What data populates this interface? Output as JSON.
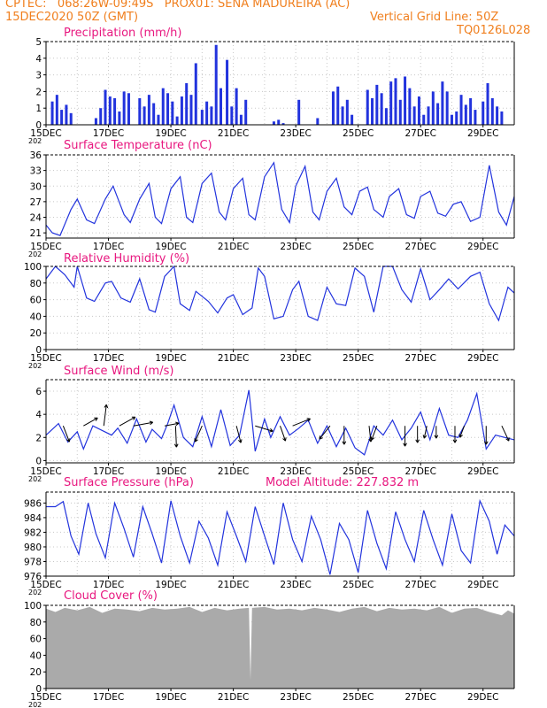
{
  "header": {
    "line1_left": "CPTEC:   068:26W-09:49S   PROX01: SENA MADUREIRA (AC)",
    "line2_left": "15DEC2020 50Z (GMT)",
    "line2_right": "Vertical Grid Line: 50Z",
    "line3_right": "TQ0126L028"
  },
  "colors": {
    "header": "#f07f1e",
    "title": "#e8177f",
    "series": "#2233dd",
    "cloud": "#aaaaaa",
    "grid": "#c8c8c8"
  },
  "chart_data": [
    {
      "type": "bar",
      "title": "Precipitation (mm/h)",
      "x_labels": [
        "15DEC",
        "17DEC",
        "19DEC",
        "21DEC",
        "23DEC",
        "25DEC",
        "27DEC",
        "29DEC"
      ],
      "year_fragment": "202",
      "ylim": [
        0,
        5
      ],
      "yticks": [
        0,
        1,
        2,
        3,
        4,
        5
      ],
      "x_range_days": [
        0,
        15
      ],
      "times": [
        0.2,
        0.35,
        0.5,
        0.65,
        0.8,
        1.6,
        1.75,
        1.9,
        2.05,
        2.2,
        2.35,
        2.5,
        2.65,
        3.0,
        3.15,
        3.3,
        3.45,
        3.6,
        3.75,
        3.9,
        4.05,
        4.2,
        4.35,
        4.5,
        4.65,
        4.8,
        5.0,
        5.15,
        5.3,
        5.45,
        5.6,
        5.8,
        5.95,
        6.1,
        6.25,
        6.4,
        7.3,
        7.45,
        7.6,
        8.1,
        8.7,
        9.2,
        9.35,
        9.5,
        9.65,
        9.8,
        10.3,
        10.45,
        10.6,
        10.75,
        10.9,
        11.05,
        11.2,
        11.35,
        11.5,
        11.65,
        11.8,
        11.95,
        12.1,
        12.25,
        12.4,
        12.55,
        12.7,
        12.85,
        13.0,
        13.15,
        13.3,
        13.45,
        13.6,
        13.75,
        14.0,
        14.15,
        14.3,
        14.45,
        14.6
      ],
      "values": [
        1.4,
        1.8,
        0.9,
        1.2,
        0.7,
        0.4,
        1.0,
        2.1,
        1.7,
        1.6,
        0.8,
        2.0,
        1.9,
        1.6,
        1.1,
        1.8,
        1.3,
        0.6,
        2.2,
        1.9,
        1.4,
        0.5,
        1.7,
        2.5,
        1.8,
        3.7,
        0.9,
        1.4,
        1.1,
        4.8,
        2.2,
        3.9,
        1.1,
        2.2,
        0.6,
        1.5,
        0.2,
        0.3,
        0.1,
        1.5,
        0.4,
        2.0,
        2.3,
        1.1,
        1.5,
        0.6,
        2.1,
        1.6,
        2.4,
        1.9,
        1.0,
        2.6,
        2.8,
        1.5,
        2.9,
        2.2,
        1.1,
        1.7,
        0.6,
        1.1,
        2.0,
        1.3,
        2.6,
        2.0,
        0.6,
        0.8,
        1.8,
        1.2,
        1.6,
        0.9,
        1.4,
        2.5,
        1.6,
        1.1,
        0.8
      ]
    },
    {
      "type": "line",
      "title": "Surface Temperature (nC)",
      "x_labels": [
        "15DEC",
        "17DEC",
        "19DEC",
        "21DEC",
        "23DEC",
        "25DEC",
        "27DEC",
        "29DEC"
      ],
      "year_fragment": "202",
      "ylim": [
        20,
        36
      ],
      "yticks": [
        21,
        24,
        27,
        30,
        33,
        36
      ],
      "x": [
        0,
        0.2,
        0.45,
        0.8,
        1.0,
        1.3,
        1.55,
        1.9,
        2.15,
        2.5,
        2.7,
        3.0,
        3.3,
        3.5,
        3.7,
        4.0,
        4.3,
        4.5,
        4.7,
        5.0,
        5.3,
        5.55,
        5.75,
        6.0,
        6.3,
        6.5,
        6.7,
        7.0,
        7.3,
        7.55,
        7.8,
        8.0,
        8.3,
        8.55,
        8.75,
        9.0,
        9.3,
        9.55,
        9.8,
        10.05,
        10.3,
        10.5,
        10.8,
        11.0,
        11.3,
        11.55,
        11.8,
        12.0,
        12.3,
        12.55,
        12.8,
        13.05,
        13.3,
        13.6,
        13.9,
        14.2,
        14.5,
        14.75,
        15.0
      ],
      "values": [
        22.5,
        21.0,
        20.5,
        25.5,
        27.5,
        23.5,
        22.8,
        27.5,
        30.0,
        24.5,
        23.0,
        27.5,
        30.5,
        24.0,
        22.8,
        29.5,
        31.8,
        24.0,
        23.0,
        30.5,
        32.5,
        25.0,
        23.5,
        29.5,
        31.5,
        24.5,
        23.5,
        31.8,
        34.5,
        25.5,
        23.0,
        30.0,
        33.8,
        25.0,
        23.5,
        29.0,
        31.5,
        26.0,
        24.5,
        29.0,
        29.8,
        25.5,
        24.0,
        28.0,
        29.5,
        24.5,
        23.8,
        28.0,
        29.0,
        24.8,
        24.2,
        26.5,
        27.0,
        23.2,
        24.0,
        34.0,
        25.0,
        22.5,
        28.0
      ]
    },
    {
      "type": "line",
      "title": "Relative Humidity (%)",
      "x_labels": [
        "15DEC",
        "17DEC",
        "19DEC",
        "21DEC",
        "23DEC",
        "25DEC",
        "27DEC",
        "29DEC"
      ],
      "year_fragment": "202",
      "ylim": [
        0,
        100
      ],
      "yticks": [
        0,
        20,
        40,
        60,
        80,
        100
      ],
      "x": [
        0,
        0.3,
        0.6,
        0.9,
        1.0,
        1.3,
        1.55,
        1.9,
        2.1,
        2.4,
        2.7,
        3.0,
        3.3,
        3.5,
        3.8,
        4.1,
        4.3,
        4.6,
        4.8,
        5.2,
        5.5,
        5.8,
        6.0,
        6.3,
        6.6,
        6.8,
        7.0,
        7.3,
        7.6,
        7.9,
        8.1,
        8.4,
        8.7,
        9.0,
        9.3,
        9.6,
        9.9,
        10.2,
        10.5,
        10.8,
        11.1,
        11.4,
        11.7,
        12.0,
        12.3,
        12.6,
        12.9,
        13.2,
        13.6,
        13.9,
        14.2,
        14.5,
        14.8,
        15.0
      ],
      "values": [
        85,
        100,
        90,
        75,
        100,
        62,
        58,
        80,
        82,
        62,
        57,
        85,
        48,
        45,
        88,
        100,
        55,
        47,
        70,
        58,
        44,
        62,
        66,
        42,
        50,
        98,
        88,
        37,
        40,
        72,
        82,
        40,
        35,
        75,
        55,
        53,
        98,
        88,
        45,
        100,
        100,
        72,
        57,
        97,
        60,
        72,
        85,
        73,
        88,
        93,
        55,
        35,
        75,
        68
      ]
    },
    {
      "type": "line",
      "title": "Surface Wind (m/s)",
      "x_labels": [
        "15DEC",
        "17DEC",
        "19DEC",
        "21DEC",
        "23DEC",
        "25DEC",
        "27DEC",
        "29DEC"
      ],
      "year_fragment": "202",
      "ylim": [
        -0.2,
        7
      ],
      "yticks": [
        0,
        2,
        4,
        6
      ],
      "x": [
        0,
        0.4,
        0.7,
        1.0,
        1.2,
        1.5,
        1.8,
        2.1,
        2.3,
        2.6,
        2.9,
        3.2,
        3.4,
        3.7,
        3.9,
        4.1,
        4.4,
        4.7,
        5.0,
        5.3,
        5.6,
        5.9,
        6.2,
        6.5,
        6.7,
        7.0,
        7.2,
        7.5,
        7.8,
        8.1,
        8.4,
        8.7,
        9.0,
        9.3,
        9.6,
        9.9,
        10.2,
        10.5,
        10.8,
        11.1,
        11.4,
        11.7,
        12.0,
        12.3,
        12.6,
        12.9,
        13.2,
        13.5,
        13.8,
        14.1,
        14.4,
        14.7,
        15.0
      ],
      "values": [
        2.2,
        3.2,
        1.6,
        2.5,
        1.0,
        3.0,
        2.6,
        2.2,
        2.8,
        1.5,
        3.6,
        1.6,
        2.7,
        1.9,
        3.2,
        4.8,
        2.0,
        1.2,
        3.8,
        1.2,
        4.4,
        1.3,
        2.2,
        6.1,
        0.8,
        3.6,
        2.0,
        3.8,
        2.2,
        2.8,
        3.5,
        1.5,
        3.0,
        1.2,
        2.8,
        1.1,
        0.5,
        3.0,
        2.2,
        3.5,
        1.8,
        2.8,
        4.2,
        1.8,
        4.5,
        2.2,
        2.0,
        3.5,
        5.8,
        1.0,
        2.2,
        2.0,
        1.8
      ],
      "arrows": [
        {
          "t": 0.55,
          "u": 0.7,
          "v": -1.8
        },
        {
          "t": 1.2,
          "u": 1.6,
          "v": 0.9
        },
        {
          "t": 1.85,
          "u": 0.3,
          "v": 2.4
        },
        {
          "t": 2.35,
          "u": 1.8,
          "v": 1.0
        },
        {
          "t": 2.8,
          "u": 2.2,
          "v": 0.4
        },
        {
          "t": 3.8,
          "u": 1.6,
          "v": 0.3
        },
        {
          "t": 4.15,
          "u": 0.1,
          "v": -2.4
        },
        {
          "t": 5.0,
          "u": -0.8,
          "v": -1.8
        },
        {
          "t": 6.1,
          "u": 0.5,
          "v": -1.9
        },
        {
          "t": 6.7,
          "u": 2.0,
          "v": -0.6
        },
        {
          "t": 7.5,
          "u": 0.6,
          "v": -1.7
        },
        {
          "t": 7.9,
          "u": 2.0,
          "v": 0.8
        },
        {
          "t": 9.1,
          "u": -1.2,
          "v": -1.5
        },
        {
          "t": 9.55,
          "u": 0.0,
          "v": -2.1
        },
        {
          "t": 10.35,
          "u": 0.2,
          "v": -1.8
        },
        {
          "t": 10.6,
          "u": -0.6,
          "v": -1.6
        },
        {
          "t": 11.5,
          "u": 0.0,
          "v": -2.3
        },
        {
          "t": 11.9,
          "u": 0.0,
          "v": -1.9
        },
        {
          "t": 12.2,
          "u": -0.3,
          "v": -1.4
        },
        {
          "t": 12.5,
          "u": 0.0,
          "v": -1.4
        },
        {
          "t": 13.1,
          "u": 0.0,
          "v": -1.9
        },
        {
          "t": 13.4,
          "u": -0.5,
          "v": -1.3
        },
        {
          "t": 14.1,
          "u": 0.0,
          "v": -2.1
        },
        {
          "t": 14.6,
          "u": 0.8,
          "v": -1.7
        }
      ]
    },
    {
      "type": "line",
      "title": "Surface Pressure (hPa)",
      "annotation": "Model Altitude: 227.832 m",
      "x_labels": [
        "15DEC",
        "17DEC",
        "19DEC",
        "21DEC",
        "23DEC",
        "25DEC",
        "27DEC",
        "29DEC"
      ],
      "year_fragment": "202",
      "ylim": [
        976,
        987.5
      ],
      "yticks": [
        976,
        978,
        980,
        982,
        984,
        986
      ],
      "x": [
        0,
        0.3,
        0.55,
        0.8,
        1.05,
        1.35,
        1.6,
        1.9,
        2.2,
        2.5,
        2.8,
        3.1,
        3.4,
        3.7,
        4.0,
        4.3,
        4.6,
        4.9,
        5.2,
        5.5,
        5.8,
        6.1,
        6.4,
        6.7,
        7.0,
        7.3,
        7.6,
        7.9,
        8.2,
        8.5,
        8.8,
        9.1,
        9.4,
        9.7,
        10.0,
        10.3,
        10.6,
        10.9,
        11.2,
        11.5,
        11.8,
        12.1,
        12.4,
        12.7,
        13.0,
        13.3,
        13.6,
        13.9,
        14.2,
        14.45,
        14.7,
        15.0
      ],
      "values": [
        985.5,
        985.5,
        986.2,
        981.5,
        979.0,
        986.0,
        981.8,
        978.5,
        986.0,
        982.5,
        978.6,
        985.5,
        981.8,
        977.8,
        986.3,
        981.5,
        977.8,
        983.5,
        981.2,
        977.5,
        984.8,
        981.5,
        978.0,
        985.5,
        981.5,
        977.6,
        986.0,
        981.0,
        978.0,
        984.2,
        981.0,
        976.2,
        983.2,
        981.0,
        976.5,
        985.0,
        980.5,
        977.0,
        984.8,
        981.0,
        978.0,
        985.0,
        981.0,
        977.5,
        984.5,
        979.5,
        977.8,
        986.3,
        983.5,
        979.0,
        983.0,
        981.5
      ]
    },
    {
      "type": "area",
      "title": "Cloud Cover (%)",
      "x_labels": [
        "15DEC",
        "17DEC",
        "19DEC",
        "21DEC",
        "23DEC",
        "25DEC",
        "27DEC",
        "29DEC"
      ],
      "year_fragment": "202",
      "ylim": [
        0,
        100
      ],
      "yticks": [
        0,
        20,
        40,
        60,
        80,
        100
      ],
      "x": [
        0,
        0.3,
        0.6,
        1.0,
        1.4,
        1.8,
        2.2,
        2.6,
        3.0,
        3.4,
        3.8,
        4.2,
        4.6,
        5.0,
        5.4,
        5.8,
        6.2,
        6.5,
        6.55,
        6.6,
        7.0,
        7.4,
        7.8,
        8.2,
        8.6,
        9.0,
        9.4,
        9.8,
        10.2,
        10.6,
        11.0,
        11.4,
        11.8,
        12.2,
        12.6,
        13.0,
        13.4,
        13.8,
        14.2,
        14.6,
        14.8,
        15.0
      ],
      "values": [
        96,
        92,
        97,
        94,
        98,
        91,
        96,
        95,
        93,
        97,
        95,
        96,
        98,
        92,
        97,
        94,
        96,
        97,
        10,
        97,
        98,
        95,
        96,
        94,
        97,
        95,
        92,
        96,
        98,
        93,
        97,
        95,
        96,
        94,
        98,
        91,
        96,
        97,
        92,
        88,
        94,
        90
      ]
    }
  ]
}
